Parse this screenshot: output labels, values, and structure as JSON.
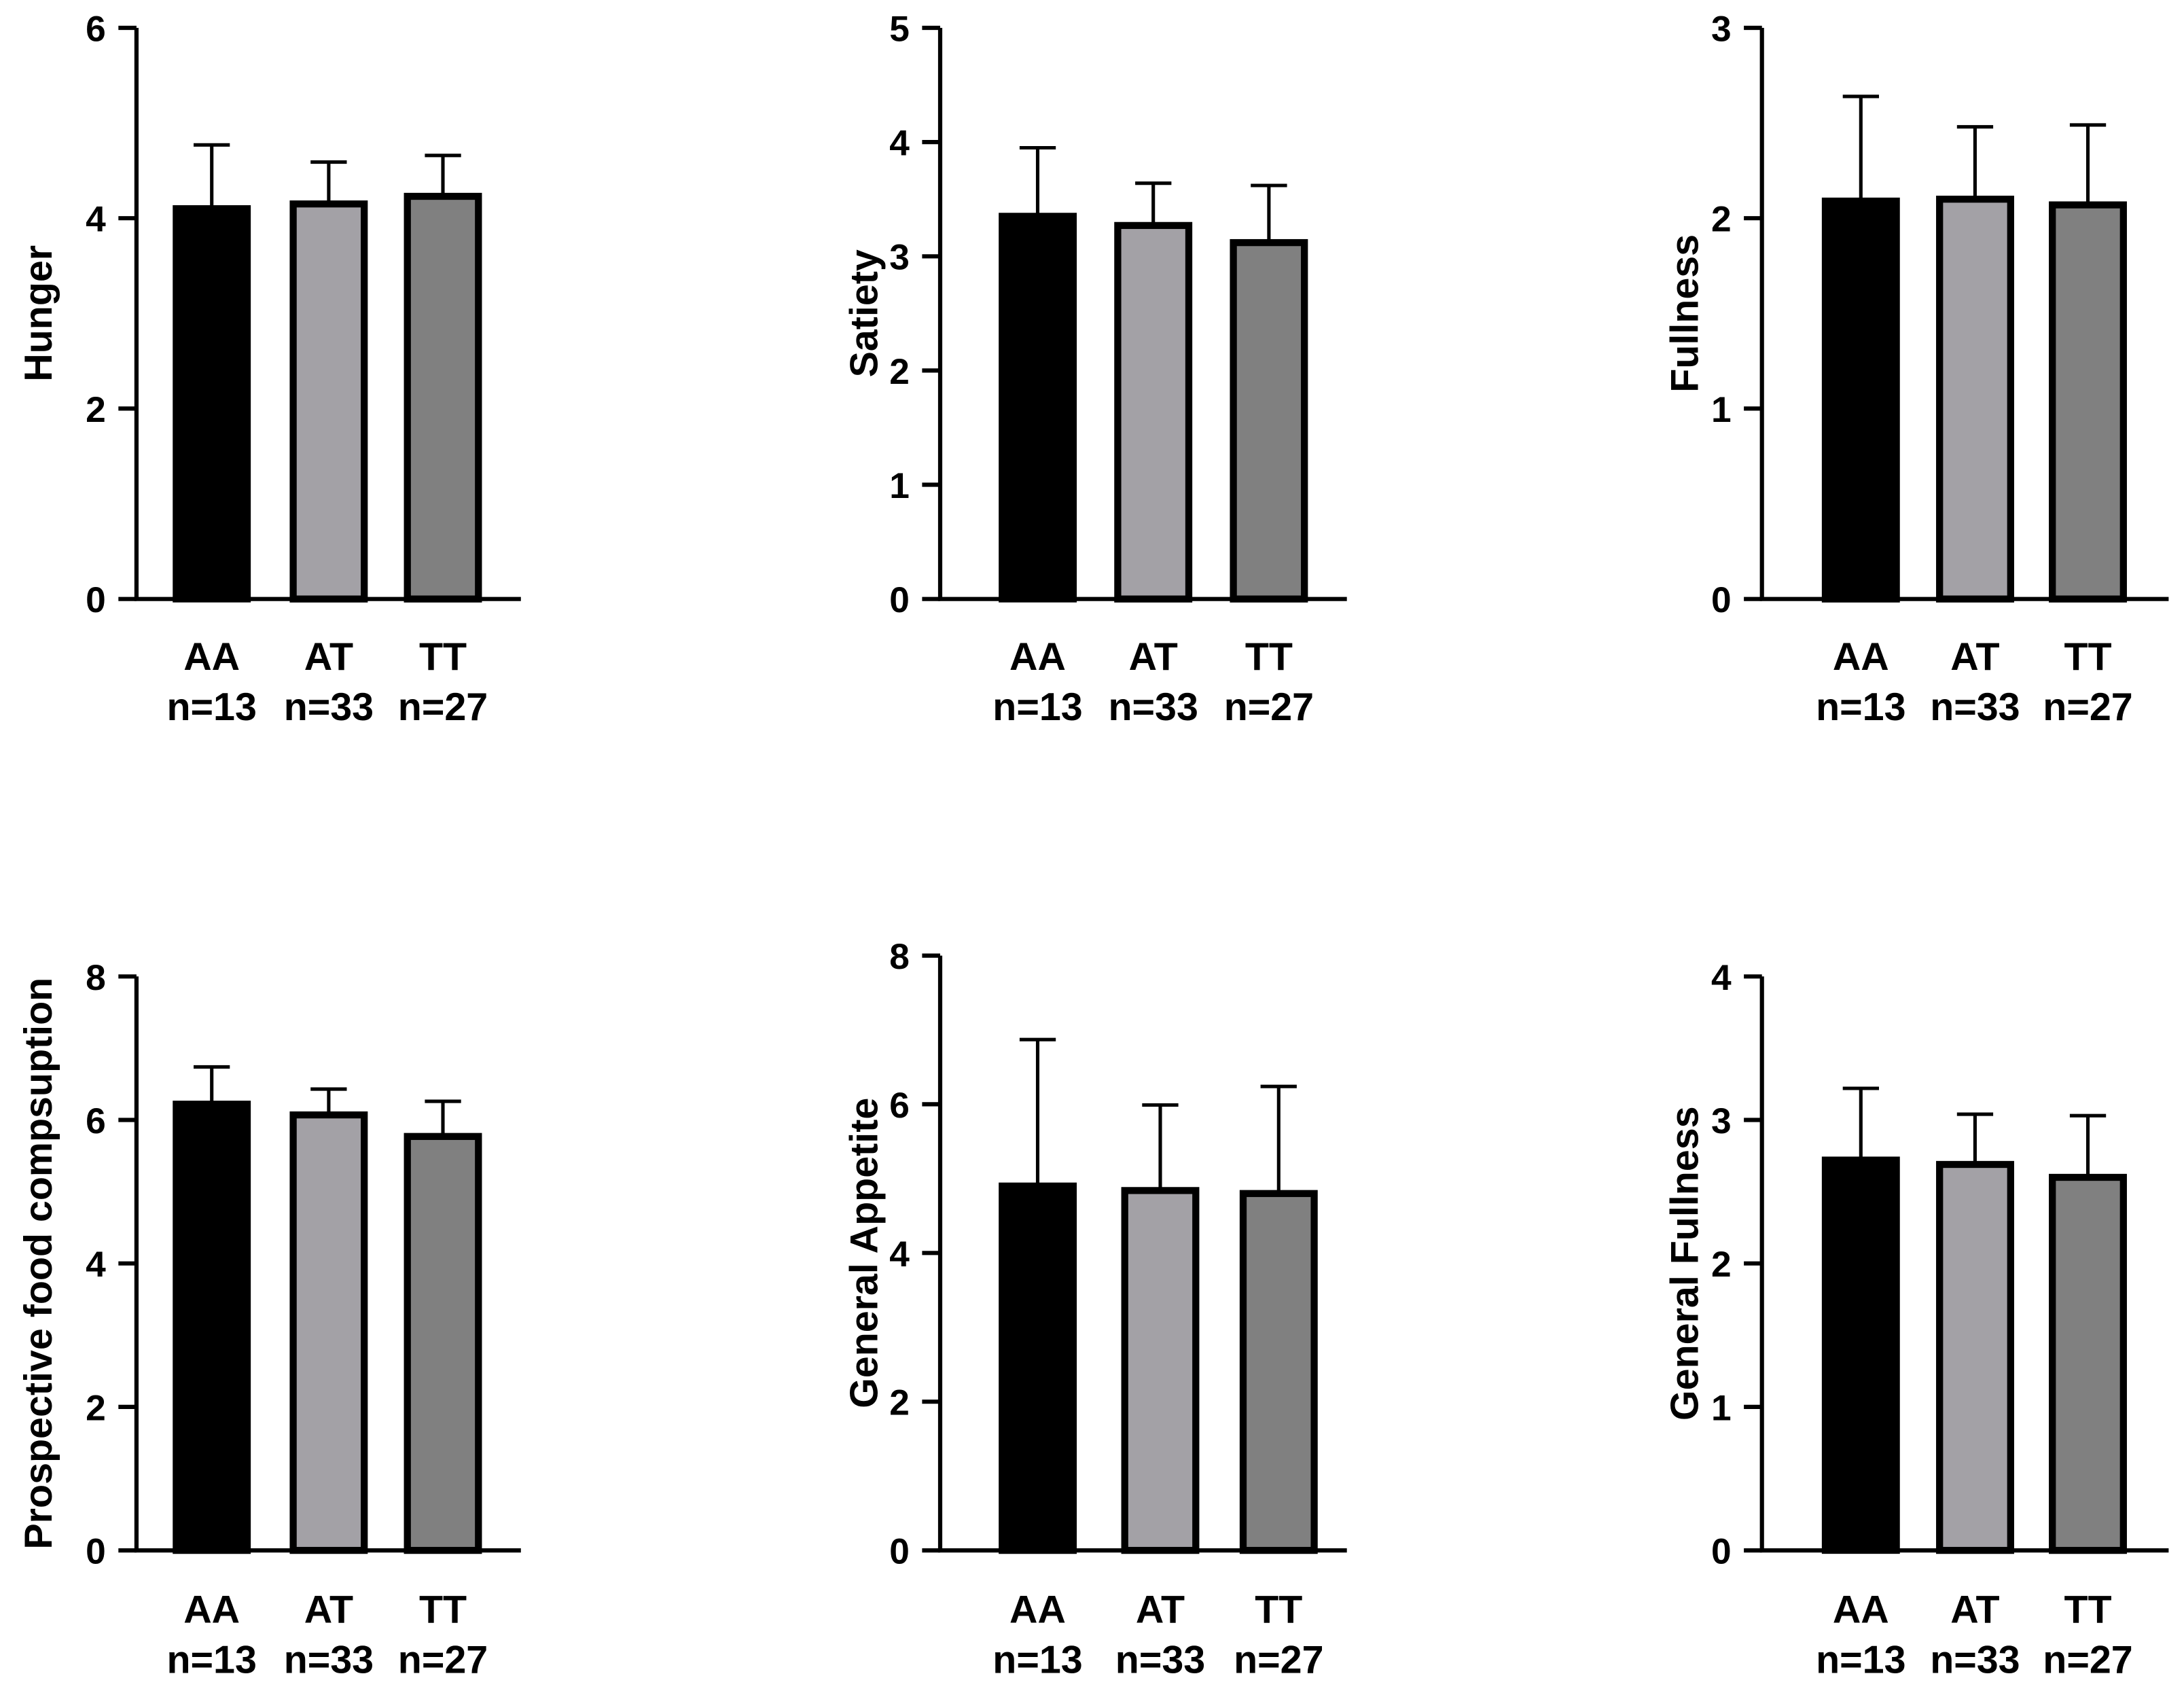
{
  "colors": {
    "AA": "#000000",
    "AT": "#a3a1a6",
    "TT": "#808080",
    "axis": "#000000"
  },
  "chart_data": [
    {
      "type": "bar",
      "ylabel": "Hunger",
      "ylim": [
        0,
        6
      ],
      "yticks": [
        "0",
        "2",
        "4",
        "6"
      ],
      "categories": [
        "AA",
        "AT",
        "TT"
      ],
      "n_labels": [
        "n=13",
        "n=33",
        "n=27"
      ],
      "values": [
        4.1,
        4.15,
        4.23
      ],
      "errors": [
        0.67,
        0.44,
        0.43
      ]
    },
    {
      "type": "bar",
      "ylabel": "Satiety",
      "ylim": [
        0,
        5
      ],
      "yticks": [
        "0",
        "1",
        "2",
        "3",
        "4",
        "5"
      ],
      "categories": [
        "AA",
        "AT",
        "TT"
      ],
      "n_labels": [
        "n=13",
        "n=33",
        "n=27"
      ],
      "values": [
        3.35,
        3.27,
        3.12
      ],
      "errors": [
        0.6,
        0.37,
        0.5
      ]
    },
    {
      "type": "bar",
      "ylabel": "Fullness",
      "ylim": [
        0,
        3
      ],
      "yticks": [
        "0",
        "1",
        "2",
        "3"
      ],
      "categories": [
        "AA",
        "AT",
        "TT"
      ],
      "n_labels": [
        "n=13",
        "n=33",
        "n=27"
      ],
      "values": [
        2.09,
        2.1,
        2.07
      ],
      "errors": [
        0.55,
        0.38,
        0.42
      ]
    },
    {
      "type": "bar",
      "ylabel": "Prospective food compsuption",
      "ylim": [
        0,
        8
      ],
      "yticks": [
        "0",
        "2",
        "4",
        "6",
        "8"
      ],
      "categories": [
        "AA",
        "AT",
        "TT"
      ],
      "n_labels": [
        "n=13",
        "n=33",
        "n=27"
      ],
      "values": [
        6.22,
        6.07,
        5.77
      ],
      "errors": [
        0.52,
        0.36,
        0.49
      ]
    },
    {
      "type": "bar",
      "ylabel": "General  Appetite",
      "ylim": [
        0,
        8
      ],
      "yticks": [
        "0",
        "2",
        "4",
        "6",
        "8"
      ],
      "categories": [
        "AA",
        "AT",
        "TT"
      ],
      "n_labels": [
        "n=13",
        "n=33",
        "n=27"
      ],
      "values": [
        4.9,
        4.84,
        4.8
      ],
      "errors": [
        1.97,
        1.15,
        1.44
      ]
    },
    {
      "type": "bar",
      "ylabel": "General  Fullness",
      "ylim": [
        0,
        4
      ],
      "yticks": [
        "0",
        "1",
        "2",
        "3",
        "4"
      ],
      "categories": [
        "AA",
        "AT",
        "TT"
      ],
      "n_labels": [
        "n=13",
        "n=33",
        "n=27"
      ],
      "values": [
        2.72,
        2.69,
        2.6
      ],
      "errors": [
        0.5,
        0.35,
        0.43
      ]
    }
  ]
}
